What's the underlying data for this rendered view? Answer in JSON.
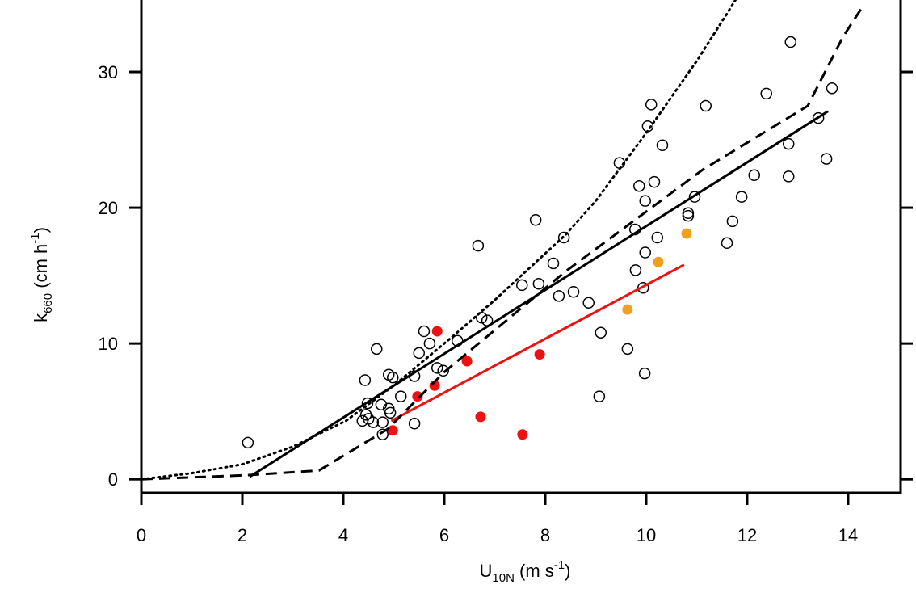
{
  "chart_data": {
    "type": "scatter",
    "xlabel": {
      "base": "U",
      "sub": "10N",
      "text": " (m s",
      "sup": "-1",
      "end": ")"
    },
    "ylabel": {
      "base": "k",
      "sub": "660",
      "text": " (cm h",
      "sup": "-1",
      "end": ")"
    },
    "xlim": [
      0,
      15
    ],
    "ylim": [
      -1,
      35
    ],
    "xticks": [
      0,
      2,
      4,
      6,
      8,
      10,
      12,
      14
    ],
    "yticks": [
      0,
      10,
      20,
      30
    ],
    "series": [
      {
        "kind": "scatter",
        "marker": "open",
        "color": "#000000",
        "x": [
          2.11,
          4.43,
          4.66,
          4.48,
          4.45,
          4.38,
          4.5,
          4.59,
          4.75,
          4.78,
          4.78,
          4.9,
          4.98,
          4.9,
          4.93,
          5.14,
          5.41,
          5.41,
          5.5,
          5.6,
          5.71,
          5.86,
          5.98,
          6.26,
          6.67,
          6.74,
          6.85,
          7.54,
          7.81,
          7.87,
          8.16,
          8.27,
          8.37,
          8.56,
          8.86,
          9.07,
          9.1,
          9.47,
          9.63,
          9.78,
          9.79,
          9.86,
          9.94,
          9.97,
          9.98,
          9.98,
          10.03,
          10.1,
          10.16,
          10.22,
          10.32,
          10.83,
          10.83,
          10.96,
          11.18,
          11.6,
          11.71,
          11.89,
          12.14,
          12.38,
          12.82,
          12.82,
          12.86,
          13.41,
          13.57,
          13.68
        ],
        "y": [
          2.7,
          7.3,
          9.6,
          5.6,
          4.75,
          4.3,
          4.45,
          4.2,
          5.5,
          4.2,
          3.3,
          7.7,
          7.5,
          5.2,
          4.9,
          6.1,
          7.6,
          4.1,
          9.3,
          10.9,
          10.0,
          8.2,
          8.0,
          10.2,
          17.2,
          11.9,
          11.7,
          14.3,
          19.1,
          14.4,
          15.9,
          13.5,
          17.8,
          13.8,
          13.0,
          6.1,
          10.8,
          23.3,
          9.6,
          18.4,
          15.4,
          21.6,
          14.1,
          7.8,
          20.5,
          16.7,
          26.0,
          27.6,
          21.9,
          17.8,
          24.6,
          19.4,
          19.6,
          20.8,
          27.5,
          17.4,
          19.0,
          20.8,
          22.4,
          28.4,
          22.3,
          24.7,
          32.2,
          26.6,
          23.6,
          28.8
        ]
      },
      {
        "kind": "scatter",
        "marker": "filled",
        "color": "#ee1111",
        "x": [
          4.98,
          5.47,
          5.81,
          5.86,
          6.45,
          6.72,
          7.55,
          7.89
        ],
        "y": [
          3.6,
          6.1,
          6.9,
          10.9,
          8.7,
          4.6,
          3.3,
          9.2
        ]
      },
      {
        "kind": "scatter",
        "marker": "filled",
        "color": "#f0a020",
        "x": [
          9.63,
          10.24,
          10.8
        ],
        "y": [
          12.5,
          16.0,
          18.1
        ]
      },
      {
        "kind": "line",
        "dash": "solid",
        "color": "#000000",
        "x": [
          2.15,
          13.6
        ],
        "y": [
          0.2,
          27.1
        ]
      },
      {
        "kind": "line",
        "dash": "solid",
        "color": "#ee1111",
        "x": [
          4.95,
          10.75
        ],
        "y": [
          4.3,
          15.8
        ]
      },
      {
        "kind": "line",
        "dash": "dashed",
        "color": "#000000",
        "x": [
          0,
          2.1,
          3.52,
          4.88,
          6.0,
          8.4,
          11.12,
          13.2,
          13.9,
          14.32
        ],
        "y": [
          0,
          0.3,
          0.65,
          3.7,
          7.9,
          15.3,
          22.8,
          27.5,
          32.6,
          35
        ]
      },
      {
        "kind": "line",
        "dash": "dotted",
        "color": "#000000",
        "x": [
          0,
          1,
          2,
          3,
          4.05,
          5,
          6.16,
          7,
          8.4,
          9,
          10,
          11,
          11.6,
          12
        ],
        "y": [
          0,
          0.45,
          1.1,
          2.4,
          4.3,
          6.9,
          10.5,
          13.2,
          18,
          20.5,
          25.5,
          30.8,
          34.3,
          36.7
        ]
      }
    ]
  }
}
